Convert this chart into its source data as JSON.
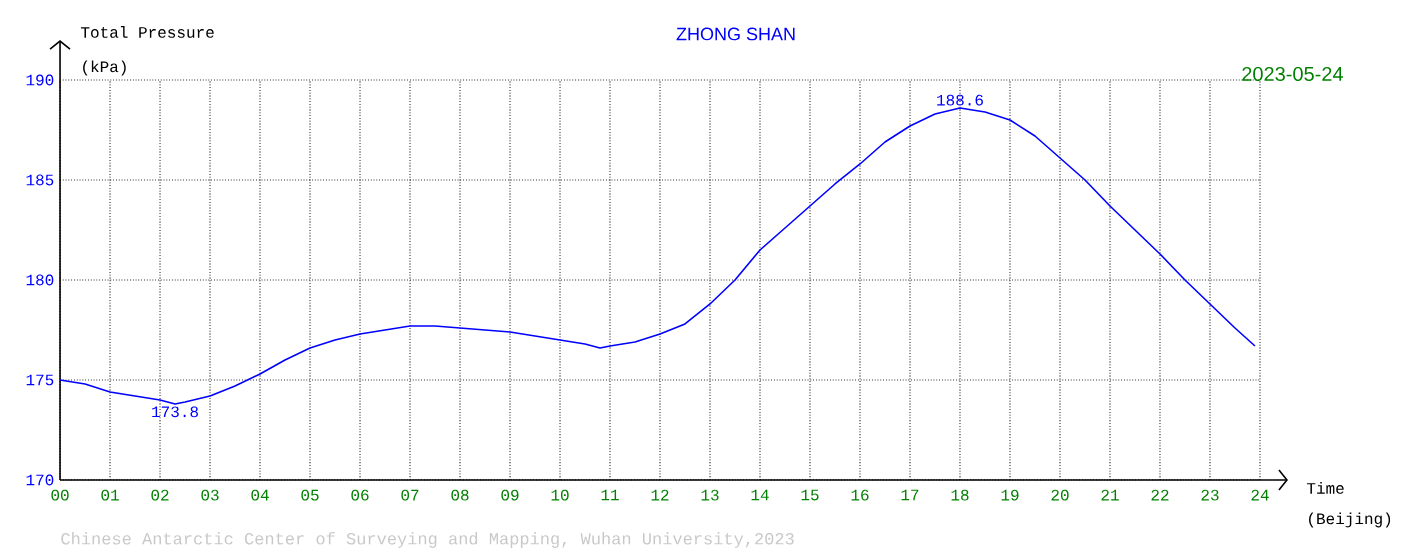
{
  "chart_data": {
    "type": "line",
    "title": "ZHONG SHAN",
    "subtitle": "2023-05-24",
    "ylabel": "Total Pressure",
    "xlabel": "Time",
    "annotations": [
      "(kPa)",
      "(Beijing)",
      "Chinese Antarctic Center of Surveying and Mapping, Wuhan University,2023",
      {
        "text": "173.8",
        "x": 2.3,
        "y": 173.8
      },
      {
        "text": "188.6",
        "x": 18,
        "y": 188.6
      }
    ],
    "series": [
      {
        "color": "#0000ff",
        "x": [
          0,
          0.5,
          1,
          1.5,
          2,
          2.3,
          2.5,
          3,
          3.5,
          4,
          4.5,
          5,
          5.5,
          6,
          6.5,
          7,
          7.5,
          8,
          8.5,
          9,
          9.5,
          10,
          10.5,
          10.8,
          11,
          11.5,
          12,
          12.5,
          13,
          13.5,
          14,
          14.5,
          15,
          15.5,
          16,
          16.5,
          17,
          17.5,
          18,
          18.5,
          19,
          19.5,
          20,
          20.5,
          21,
          21.5,
          22,
          22.5,
          23,
          23.5,
          23.9
        ],
        "values": [
          175.0,
          174.8,
          174.4,
          174.2,
          174.0,
          173.8,
          173.9,
          174.2,
          174.7,
          175.3,
          176.0,
          176.6,
          177.0,
          177.3,
          177.5,
          177.7,
          177.7,
          177.6,
          177.5,
          177.4,
          177.2,
          177.0,
          176.8,
          176.6,
          176.7,
          176.9,
          177.3,
          177.8,
          178.8,
          180.0,
          181.5,
          182.6,
          183.7,
          184.8,
          185.8,
          186.9,
          187.7,
          188.3,
          188.6,
          188.4,
          188.0,
          187.2,
          186.1,
          185.0,
          183.7,
          182.5,
          181.3,
          180.0,
          178.8,
          177.6,
          176.7
        ]
      }
    ],
    "xlim": [
      0,
      24
    ],
    "ylim": [
      170,
      190
    ],
    "xticks": [
      {
        "value": 0,
        "label": "00"
      },
      {
        "value": 1,
        "label": "01"
      },
      {
        "value": 2,
        "label": "02"
      },
      {
        "value": 3,
        "label": "03"
      },
      {
        "value": 4,
        "label": "04"
      },
      {
        "value": 5,
        "label": "05"
      },
      {
        "value": 6,
        "label": "06"
      },
      {
        "value": 7,
        "label": "07"
      },
      {
        "value": 8,
        "label": "08"
      },
      {
        "value": 9,
        "label": "09"
      },
      {
        "value": 10,
        "label": "10"
      },
      {
        "value": 11,
        "label": "11"
      },
      {
        "value": 12,
        "label": "12"
      },
      {
        "value": 13,
        "label": "13"
      },
      {
        "value": 14,
        "label": "14"
      },
      {
        "value": 15,
        "label": "15"
      },
      {
        "value": 16,
        "label": "16"
      },
      {
        "value": 17,
        "label": "17"
      },
      {
        "value": 18,
        "label": "18"
      },
      {
        "value": 19,
        "label": "19"
      },
      {
        "value": 20,
        "label": "20"
      },
      {
        "value": 21,
        "label": "21"
      },
      {
        "value": 22,
        "label": "22"
      },
      {
        "value": 23,
        "label": "23"
      },
      {
        "value": 24,
        "label": "24"
      }
    ],
    "yticks": [
      170,
      175,
      180,
      185,
      190
    ],
    "grid": true,
    "marker": "none",
    "line_style": "solid"
  }
}
